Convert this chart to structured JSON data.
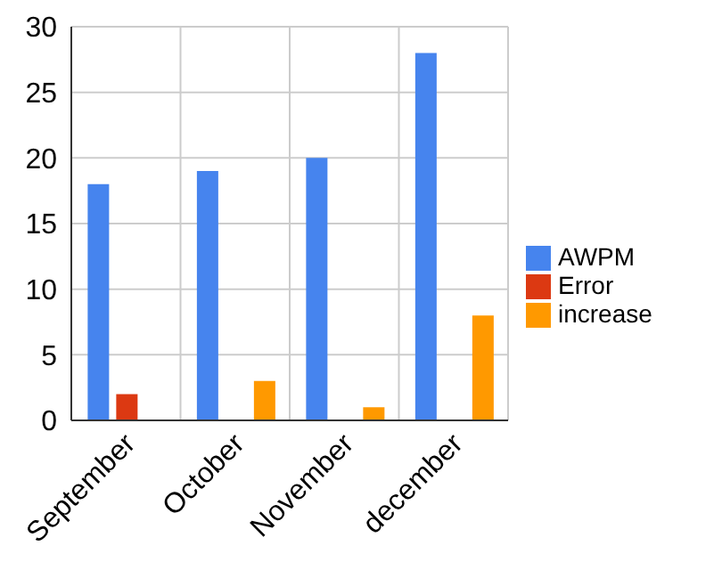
{
  "chart_data": {
    "type": "bar",
    "categories": [
      "September",
      "October",
      "November",
      "december"
    ],
    "series": [
      {
        "name": "AWPM",
        "color": "#4684ee",
        "values": [
          18,
          19,
          20,
          28
        ]
      },
      {
        "name": "Error",
        "color": "#dc3912",
        "values": [
          2,
          null,
          null,
          null
        ]
      },
      {
        "name": "increase",
        "color": "#ff9900",
        "values": [
          null,
          3,
          1,
          8
        ]
      }
    ],
    "ylim": [
      0,
      30
    ],
    "yticks": [
      0,
      5,
      10,
      15,
      20,
      25,
      30
    ],
    "grid": true,
    "legend": "right"
  }
}
